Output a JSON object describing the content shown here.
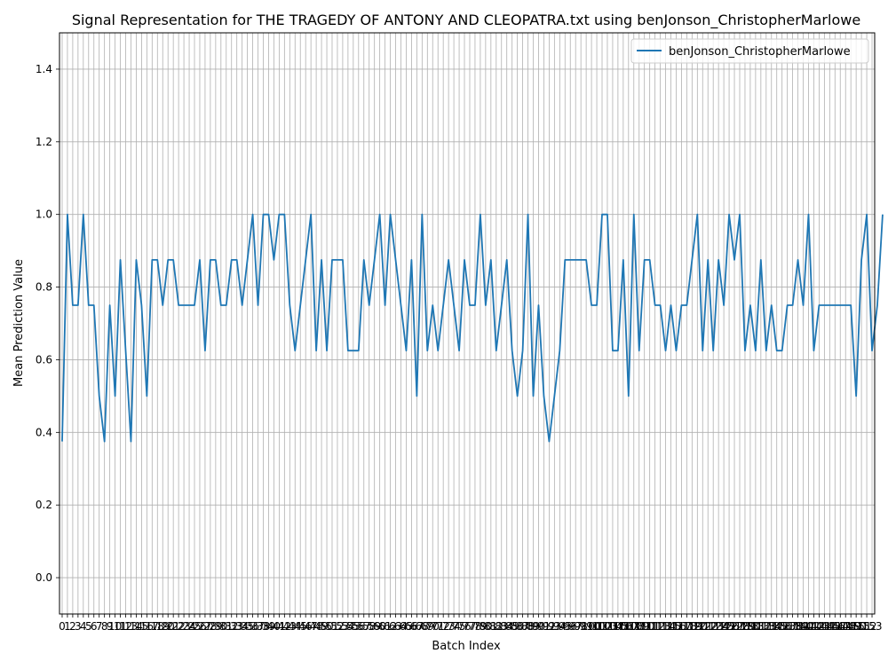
{
  "chart_data": {
    "type": "line",
    "title": "Signal Representation for THE TRAGEDY OF ANTONY AND CLEOPATRA.txt using benJonson_ChristopherMarlowe",
    "xlabel": "Batch Index",
    "ylabel": "Mean Prediction Value",
    "xlim": [
      -0.5,
      153.5
    ],
    "ylim": [
      -0.1,
      1.5
    ],
    "x_ticks": [
      0,
      1,
      2,
      3,
      4,
      5,
      6,
      7,
      8,
      9,
      10,
      11,
      12,
      13,
      14,
      15,
      16,
      17,
      18,
      19,
      20,
      21,
      22,
      23,
      24,
      25,
      26,
      27,
      28,
      29,
      30,
      31,
      32,
      33,
      34,
      35,
      36,
      37,
      38,
      39,
      40,
      41,
      42,
      43,
      44,
      45,
      46,
      47,
      48,
      49,
      50,
      51,
      52,
      53,
      54,
      55,
      56,
      57,
      58,
      59,
      60,
      61,
      62,
      63,
      64,
      65,
      66,
      67,
      68,
      69,
      70,
      71,
      72,
      73,
      74,
      75,
      76,
      77,
      78,
      79,
      80,
      81,
      82,
      83,
      84,
      85,
      86,
      87,
      88,
      89,
      90,
      91,
      92,
      93,
      94,
      95,
      96,
      97,
      98,
      99,
      100,
      101,
      102,
      103,
      104,
      105,
      106,
      107,
      108,
      109,
      110,
      111,
      112,
      113,
      114,
      115,
      116,
      117,
      118,
      119,
      120,
      121,
      122,
      123,
      124,
      125,
      126,
      127,
      128,
      129,
      130,
      131,
      132,
      133,
      134,
      135,
      136,
      137,
      138,
      139,
      140,
      141,
      142,
      143,
      144,
      145,
      146,
      147,
      148,
      149,
      150,
      151,
      152,
      153
    ],
    "y_ticks": [
      "0.0",
      "0.2",
      "0.4",
      "0.6",
      "0.8",
      "1.0",
      "1.2",
      "1.4"
    ],
    "y_tick_values": [
      0.0,
      0.2,
      0.4,
      0.6,
      0.8,
      1.0,
      1.2,
      1.4
    ],
    "grid": true,
    "legend_position": "top-right",
    "series": [
      {
        "name": "benJonson_ChristopherMarlowe",
        "color": "#1f77b4",
        "values": [
          0.375,
          1.0,
          0.75,
          0.75,
          1.0,
          0.75,
          0.75,
          0.5,
          0.375,
          0.75,
          0.5,
          0.875,
          0.625,
          0.375,
          0.875,
          0.75,
          0.5,
          0.875,
          0.875,
          0.75,
          0.875,
          0.875,
          0.75,
          0.75,
          0.75,
          0.75,
          0.875,
          0.625,
          0.875,
          0.875,
          0.75,
          0.75,
          0.875,
          0.875,
          0.75,
          0.875,
          1.0,
          0.75,
          1.0,
          1.0,
          0.875,
          1.0,
          1.0,
          0.75,
          0.625,
          0.75,
          0.875,
          1.0,
          0.625,
          0.875,
          0.625,
          0.875,
          0.875,
          0.875,
          0.625,
          0.625,
          0.625,
          0.875,
          0.75,
          0.875,
          1.0,
          0.75,
          1.0,
          0.875,
          0.75,
          0.625,
          0.875,
          0.5,
          1.0,
          0.625,
          0.75,
          0.625,
          0.75,
          0.875,
          0.75,
          0.625,
          0.875,
          0.75,
          0.75,
          1.0,
          0.75,
          0.875,
          0.625,
          0.75,
          0.875,
          0.625,
          0.5,
          0.625,
          1.0,
          0.5,
          0.75,
          0.5,
          0.375,
          0.5,
          0.625,
          0.875,
          0.875,
          0.875,
          0.875,
          0.875,
          0.75,
          0.75,
          1.0,
          1.0,
          0.625,
          0.625,
          0.875,
          0.5,
          1.0,
          0.625,
          0.875,
          0.875,
          0.75,
          0.75,
          0.625,
          0.75,
          0.625,
          0.75,
          0.75,
          0.875,
          1.0,
          0.625,
          0.875,
          0.625,
          0.875,
          0.75,
          1.0,
          0.875,
          1.0,
          0.625,
          0.75,
          0.625,
          0.875,
          0.625,
          0.75,
          0.625,
          0.625,
          0.75,
          0.75,
          0.875,
          0.75,
          1.0,
          0.625,
          0.75,
          0.75,
          0.75,
          0.75,
          0.75,
          0.75,
          0.75,
          0.5,
          0.875,
          1.0,
          0.625,
          0.75,
          1.0
        ]
      }
    ]
  }
}
